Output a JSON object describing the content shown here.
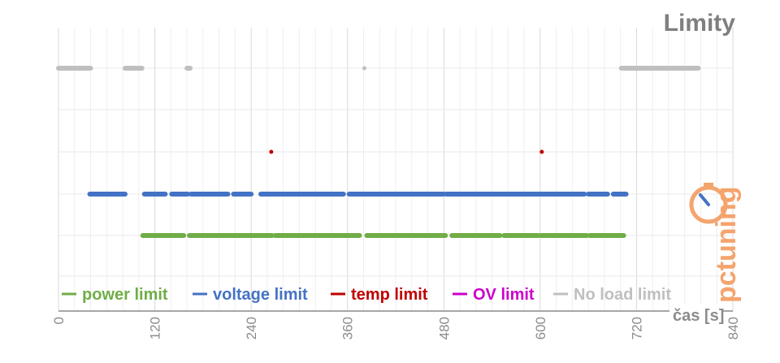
{
  "chart_data": {
    "type": "scatter",
    "title": "Limity",
    "xlabel": "čas [s]",
    "ylabel": "",
    "xlim": [
      0,
      840
    ],
    "xticks": [
      "0",
      "120",
      "240",
      "360",
      "480",
      "600",
      "720",
      "840"
    ],
    "grid": true,
    "legend_position": "bottom",
    "series": [
      {
        "name": "power limit",
        "color": "#70ad47",
        "level": 1,
        "segments": [
          [
            105,
            156
          ],
          [
            163,
            266
          ],
          [
            270,
            375
          ],
          [
            384,
            482
          ],
          [
            490,
            550
          ],
          [
            555,
            597
          ],
          [
            600,
            658
          ],
          [
            662,
            704
          ]
        ],
        "points": []
      },
      {
        "name": "voltage limit",
        "color": "#4472c4",
        "level": 2,
        "segments": [
          [
            39,
            83
          ],
          [
            107,
            133
          ],
          [
            141,
            161
          ],
          [
            165,
            211
          ],
          [
            218,
            240
          ],
          [
            252,
            355
          ],
          [
            362,
            480
          ],
          [
            483,
            655
          ],
          [
            660,
            684
          ],
          [
            691,
            707
          ]
        ],
        "points": []
      },
      {
        "name": "temp limit",
        "color": "#c00000",
        "level": 3,
        "segments": [],
        "points": [
          265,
          602
        ]
      },
      {
        "name": "OV limit",
        "color": "#cc00cc",
        "level": 4,
        "segments": [],
        "points": []
      },
      {
        "name": "No load limit",
        "color": "#bfbfbf",
        "level": 5,
        "segments": [
          [
            0,
            40
          ],
          [
            83,
            104
          ],
          [
            160,
            164
          ],
          [
            701,
            797
          ]
        ],
        "points": [
          381
        ]
      }
    ]
  },
  "logo": {
    "text": "pctuning"
  }
}
